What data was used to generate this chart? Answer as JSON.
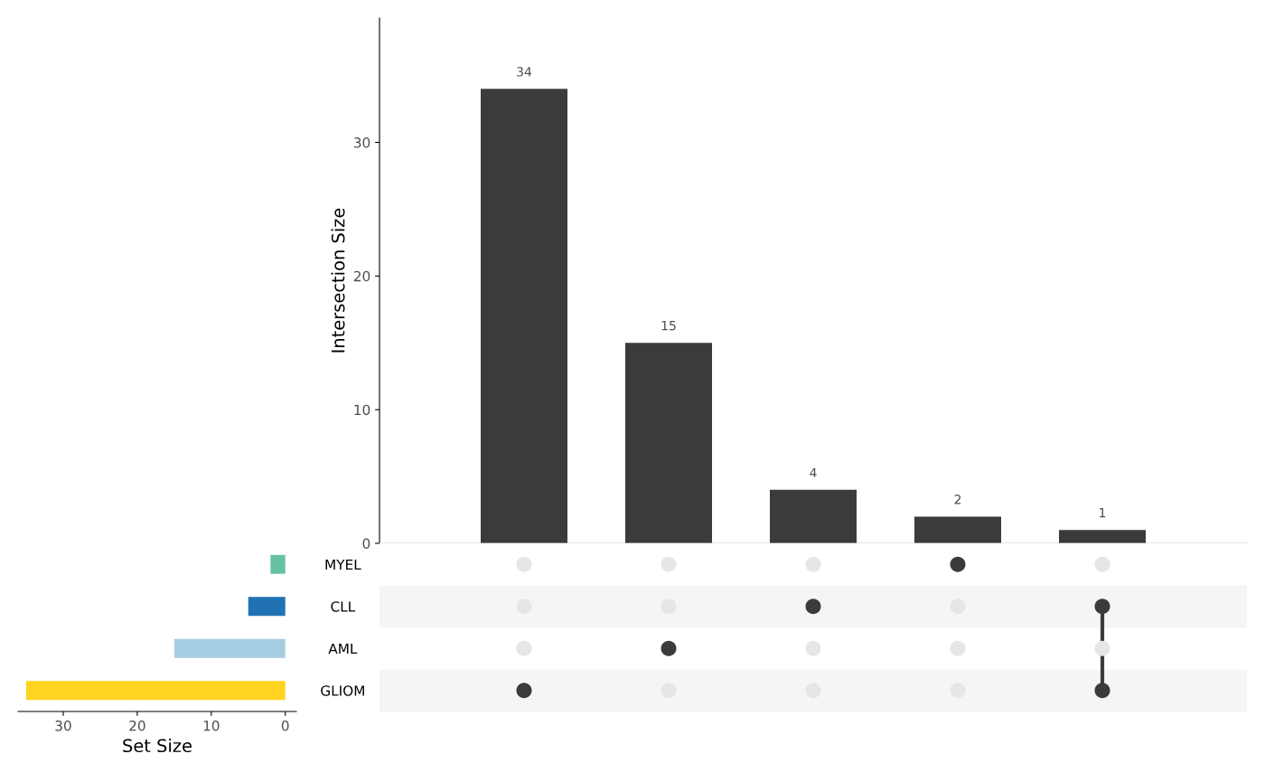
{
  "chart_data": [
    {
      "type": "bar",
      "categories": [
        null,
        null,
        null,
        null,
        null
      ],
      "values": [
        34,
        15,
        4,
        2,
        1
      ],
      "color": "#3b3b3b",
      "ylabel": "Intersection Size",
      "ylim": [
        0,
        39.3
      ],
      "yticks": [
        0,
        10,
        20,
        30
      ],
      "data_labels": true,
      "grid": false,
      "tick_labels": "y"
    },
    {
      "type": "other",
      "categories": [
        null,
        null,
        null,
        null,
        null
      ],
      "cells": [
        [
          false,
          false,
          false,
          true,
          false
        ],
        [
          false,
          false,
          true,
          false,
          true
        ],
        [
          false,
          true,
          false,
          false,
          false
        ],
        [
          true,
          false,
          false,
          false,
          true
        ]
      ],
      "colors": [
        "#e6e6e6",
        "#3b3b3b"
      ]
    },
    {
      "type": "bar",
      "orientation": "horizontal",
      "categories": [
        "MYEL",
        "CLL",
        "AML",
        "GLIOM"
      ],
      "values": [
        2,
        5,
        15,
        35
      ],
      "colors": [
        "#66c2a5",
        "#2171b5",
        "#a6cee3",
        "#ffd320"
      ],
      "xlabel": "Set Size",
      "xlim": [
        36.1,
        -1.5
      ],
      "xticks": [
        30,
        20,
        10,
        0
      ],
      "grid": false
    }
  ]
}
